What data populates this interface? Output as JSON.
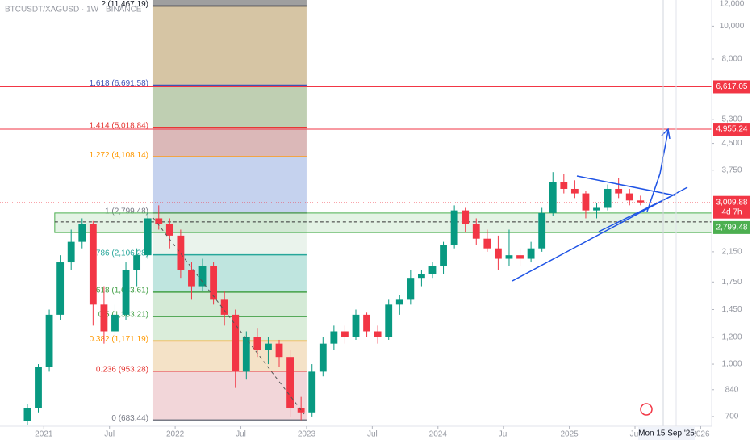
{
  "chart_data": {
    "type": "candlestick",
    "title": "BTCUSDT/XAGUSD · 1W · BINANCE",
    "log_scale": true,
    "up_color": "#089981",
    "down_color": "#f23645",
    "ylim": [
      655,
      11950
    ],
    "yticks": [
      {
        "value": 12000,
        "label": "12,000"
      },
      {
        "value": 10000,
        "label": "10,000"
      },
      {
        "value": 8000,
        "label": "8,000"
      },
      {
        "value": 5300,
        "label": "5,300"
      },
      {
        "value": 4500,
        "label": "4,500"
      },
      {
        "value": 3750,
        "label": "3,750"
      },
      {
        "value": 2150,
        "label": "2,150"
      },
      {
        "value": 1750,
        "label": "1,750"
      },
      {
        "value": 1450,
        "label": "1,450"
      },
      {
        "value": 1200,
        "label": "1,200"
      },
      {
        "value": 1000,
        "label": "1,000"
      },
      840,
      700
    ],
    "xlim": [
      "2020-09",
      "2026-02"
    ],
    "xticks": [
      {
        "value": "2021-01",
        "label": "2021"
      },
      {
        "value": "2021-07",
        "label": "Jul"
      },
      {
        "value": "2022-01",
        "label": "2022"
      },
      {
        "value": "2022-07",
        "label": "Jul"
      },
      {
        "value": "2023-01",
        "label": "2023"
      },
      {
        "value": "2023-07",
        "label": "Jul"
      },
      {
        "value": "2024-01",
        "label": "2024"
      },
      {
        "value": "2024-07",
        "label": "Jul"
      },
      {
        "value": "2025-01",
        "label": "2025"
      },
      {
        "value": "2025-07",
        "label": "Jul"
      },
      {
        "value": "2026-01",
        "label": "2026"
      }
    ],
    "x": [
      "2020-11",
      "2020-12",
      "2021-01",
      "2021-02",
      "2021-03",
      "2021-04",
      "2021-05",
      "2021-06",
      "2021-07",
      "2021-08",
      "2021-09",
      "2021-10",
      "2021-11",
      "2021-12",
      "2022-01",
      "2022-02",
      "2022-03",
      "2022-04",
      "2022-05",
      "2022-06",
      "2022-07",
      "2022-08",
      "2022-09",
      "2022-10",
      "2022-11",
      "2022-12",
      "2023-01",
      "2023-02",
      "2023-03",
      "2023-04",
      "2023-05",
      "2023-06",
      "2023-07",
      "2023-08",
      "2023-09",
      "2023-10",
      "2023-11",
      "2023-12",
      "2024-01",
      "2024-02",
      "2024-03",
      "2024-04",
      "2024-05",
      "2024-06",
      "2024-07",
      "2024-08",
      "2024-09",
      "2024-10",
      "2024-11",
      "2024-12",
      "2025-01",
      "2025-02",
      "2025-03",
      "2025-04",
      "2025-05",
      "2025-06",
      "2025-07"
    ],
    "ohlc": [
      [
        680,
        760,
        660,
        740
      ],
      [
        740,
        1000,
        720,
        980
      ],
      [
        980,
        1450,
        950,
        1400
      ],
      [
        1400,
        2100,
        1350,
        2000
      ],
      [
        2000,
        2500,
        1900,
        2300
      ],
      [
        2300,
        2700,
        2200,
        2600
      ],
      [
        2600,
        2650,
        1300,
        1500
      ],
      [
        1500,
        1700,
        1150,
        1250
      ],
      [
        1250,
        1500,
        1150,
        1400
      ],
      [
        1400,
        2000,
        1350,
        1900
      ],
      [
        1900,
        2200,
        1700,
        2100
      ],
      [
        2100,
        2800,
        2050,
        2700
      ],
      [
        2700,
        2950,
        2500,
        2600
      ],
      [
        2600,
        2700,
        2200,
        2400
      ],
      [
        2400,
        2500,
        1800,
        1900
      ],
      [
        1900,
        2000,
        1550,
        1700
      ],
      [
        1700,
        2050,
        1650,
        1950
      ],
      [
        1950,
        2000,
        1500,
        1550
      ],
      [
        1550,
        1650,
        1300,
        1400
      ],
      [
        1400,
        1450,
        850,
        950
      ],
      [
        950,
        1250,
        900,
        1200
      ],
      [
        1200,
        1280,
        1050,
        1100
      ],
      [
        1100,
        1200,
        1000,
        1150
      ],
      [
        1150,
        1180,
        980,
        1050
      ],
      [
        1050,
        1100,
        700,
        740
      ],
      [
        740,
        800,
        683,
        720
      ],
      [
        720,
        1000,
        700,
        950
      ],
      [
        950,
        1200,
        920,
        1150
      ],
      [
        1150,
        1300,
        1100,
        1250
      ],
      [
        1250,
        1300,
        1150,
        1200
      ],
      [
        1200,
        1450,
        1180,
        1400
      ],
      [
        1400,
        1420,
        1200,
        1250
      ],
      [
        1250,
        1300,
        1150,
        1200
      ],
      [
        1200,
        1550,
        1180,
        1500
      ],
      [
        1500,
        1600,
        1400,
        1550
      ],
      [
        1550,
        1900,
        1500,
        1800
      ],
      [
        1800,
        1900,
        1700,
        1850
      ],
      [
        1850,
        2000,
        1800,
        1950
      ],
      [
        1950,
        2300,
        1850,
        2250
      ],
      [
        2250,
        2950,
        2200,
        2850
      ],
      [
        2850,
        2900,
        2450,
        2600
      ],
      [
        2600,
        2700,
        2250,
        2350
      ],
      [
        2350,
        2500,
        2150,
        2200
      ],
      [
        2200,
        2400,
        1900,
        2050
      ],
      [
        2050,
        2500,
        1950,
        2100
      ],
      [
        2100,
        2200,
        1950,
        2050
      ],
      [
        2050,
        2300,
        2000,
        2200
      ],
      [
        2200,
        2900,
        2150,
        2800
      ],
      [
        2800,
        3700,
        2750,
        3450
      ],
      [
        3450,
        3650,
        3200,
        3300
      ],
      [
        3300,
        3500,
        3100,
        3200
      ],
      [
        3200,
        3250,
        2700,
        2850
      ],
      [
        2850,
        3000,
        2700,
        2900
      ],
      [
        2900,
        3400,
        2850,
        3300
      ],
      [
        3300,
        3550,
        3100,
        3200
      ],
      [
        3200,
        3300,
        2950,
        3050
      ],
      [
        3050,
        3150,
        2950,
        3010
      ]
    ],
    "fib_x": [
      "2021-11",
      "2023-01"
    ],
    "fib_levels": [
      {
        "value": 11467.19,
        "label": "? (11,467.19)",
        "color": "#131722",
        "fill": "#7f7f7f"
      },
      {
        "value": 6691.58,
        "label": "1.618 (6,691.58)",
        "color": "#3f51b5",
        "fill": "#c8b286"
      },
      {
        "value": 5018.84,
        "label": "1.414 (5,018.84)",
        "color": "#e53935",
        "fill": "#a9bf98"
      },
      {
        "value": 4108.14,
        "label": "1.272 (4,108.14)",
        "color": "#ff9800",
        "fill": "#cfa0a0"
      },
      {
        "value": 2799.48,
        "label": "1 (2,799.48)",
        "color": "#787b86",
        "fill": "#b2c3e8"
      },
      {
        "value": 2106.28,
        "label": "0.786 (2,106.28)",
        "color": "#26a69a",
        "fill": "#e3efe6"
      },
      {
        "value": 1633.61,
        "label": "0.618 (1,633.61)",
        "color": "#43a047",
        "fill": "#a9dcd4"
      },
      {
        "value": 1383.21,
        "label": "0.5 (1,383.21)",
        "color": "#43a047",
        "fill": "#c6e3c8"
      },
      {
        "value": 1171.19,
        "label": "0.382 (1,171.19)",
        "color": "#ff9800",
        "fill": "#cde7cd"
      },
      {
        "value": 953.28,
        "label": "0.236 (953.28)",
        "color": "#e53935",
        "fill": "#f0d8b4"
      },
      {
        "value": 683.44,
        "label": "0 (683.44)",
        "color": "#787b86",
        "fill": "#eec8cc"
      }
    ],
    "price_lines": [
      {
        "value": 6617.05,
        "label": "6,617.05",
        "color": "#f23645"
      },
      {
        "value": 4955.24,
        "label": "4,955.24",
        "color": "#f23645"
      }
    ],
    "zone": {
      "top": {
        "value": 2799.48,
        "label": "2,799.48"
      },
      "mid": 2636,
      "bottom": 2450,
      "color": "#4caf50"
    },
    "last_price": {
      "value": 3009.88,
      "label": "3,009.88",
      "countdown": "4d 7h",
      "color": "#f23645"
    },
    "crosshair_label": "Mon 15 Sep '25"
  }
}
